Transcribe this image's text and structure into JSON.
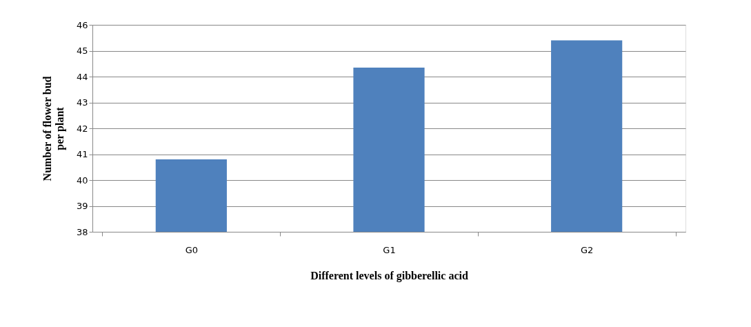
{
  "chart_data": {
    "type": "bar",
    "xlabel": "Different   levels  of gibberellic acid",
    "ylabel": "Number  of  flower bud per plant",
    "categories": [
      "G0",
      "G1",
      "G2"
    ],
    "series": [
      {
        "color": "#4f81bd",
        "values": [
          40.8,
          44.35,
          45.4
        ]
      }
    ],
    "ylim": [
      38,
      46
    ],
    "yticks": [
      38,
      39,
      40,
      41,
      42,
      43,
      44,
      45,
      46
    ],
    "grid": "y",
    "legend": false
  }
}
